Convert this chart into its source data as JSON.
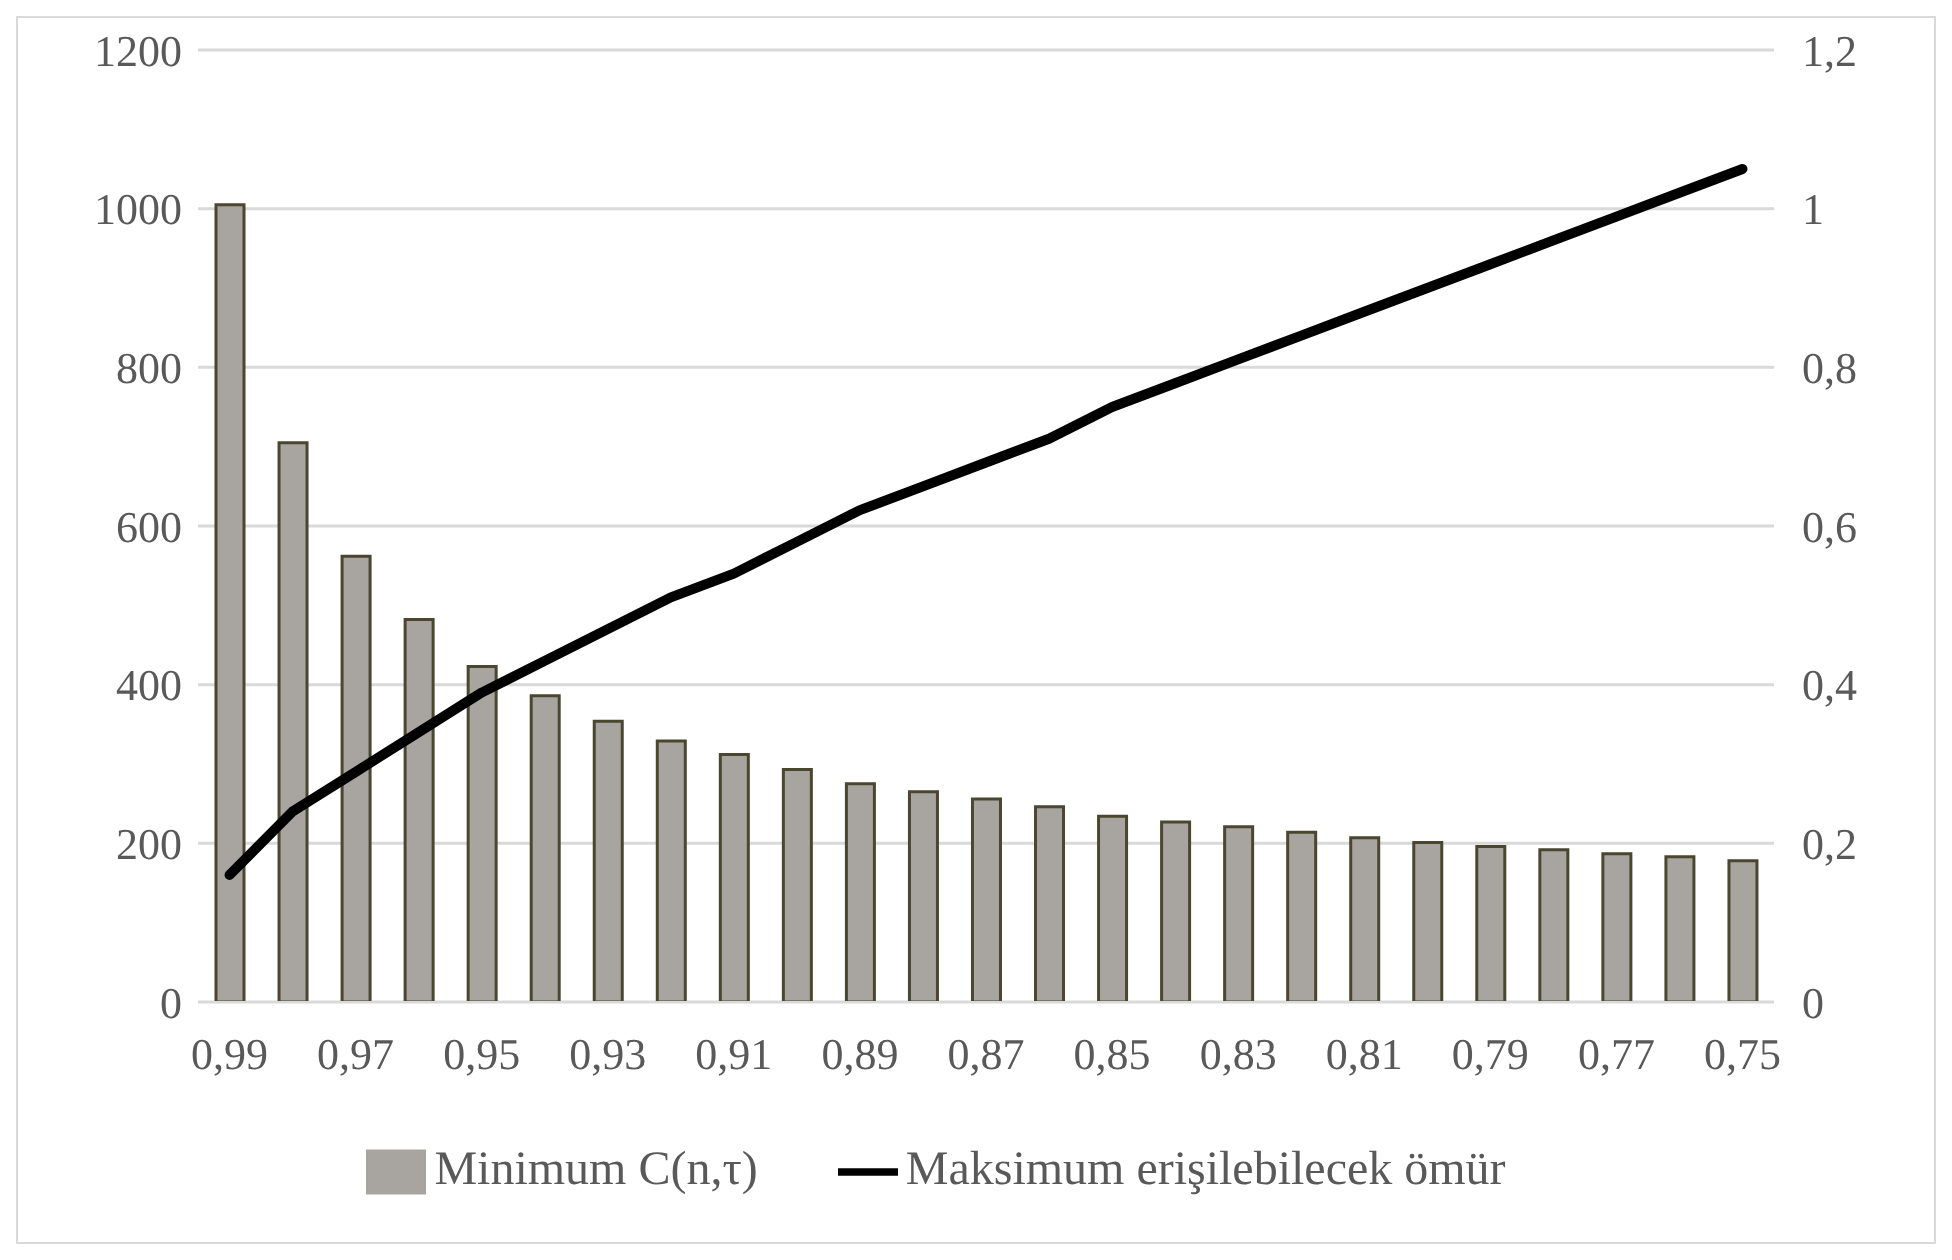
{
  "chart_data": {
    "type": "bar",
    "categories": [
      "0,99",
      null,
      "0,97",
      null,
      "0,95",
      null,
      "0,93",
      null,
      "0,91",
      null,
      "0,89",
      null,
      "0,87",
      null,
      "0,85",
      null,
      "0,83",
      null,
      "0,81",
      null,
      "0,79",
      null,
      "0,77",
      null,
      "0,75"
    ],
    "series": [
      {
        "name": "Minimum C(n,τ)",
        "color": "#a8a5a1",
        "values": [
          1005,
          705,
          562,
          482,
          423,
          386,
          354,
          329,
          312,
          293,
          275,
          265,
          256,
          246,
          234,
          227,
          221,
          214,
          207,
          201,
          196,
          192,
          187,
          183,
          178
        ]
      },
      {
        "name": "Maksimum erişilebilecek ömür",
        "type": "line",
        "axis": "y2",
        "color": "#000000",
        "values": [
          0.16,
          0.24,
          0.29,
          0.34,
          0.39,
          0.43,
          0.47,
          0.51,
          0.54,
          0.58,
          0.62,
          0.65,
          0.68,
          0.71,
          0.75,
          0.78,
          0.81,
          0.84,
          0.87,
          0.9,
          0.93,
          0.96,
          0.99,
          1.02,
          1.05
        ]
      }
    ],
    "ylim": [
      0,
      1200
    ],
    "yticks": [
      0,
      200,
      400,
      600,
      800,
      1000,
      1200
    ],
    "y2lim": [
      0,
      1.2
    ],
    "y2ticks": [
      0,
      {
        "value": 0.2,
        "label": "0,2"
      },
      {
        "value": 0.4,
        "label": "0,4"
      },
      {
        "value": 0.6,
        "label": "0,6"
      },
      {
        "value": 0.8,
        "label": "0,8"
      },
      1,
      {
        "value": 1.2,
        "label": "1,2"
      }
    ],
    "grid": "y",
    "legend": "bottom",
    "marker": "none",
    "line_style": "solid"
  }
}
